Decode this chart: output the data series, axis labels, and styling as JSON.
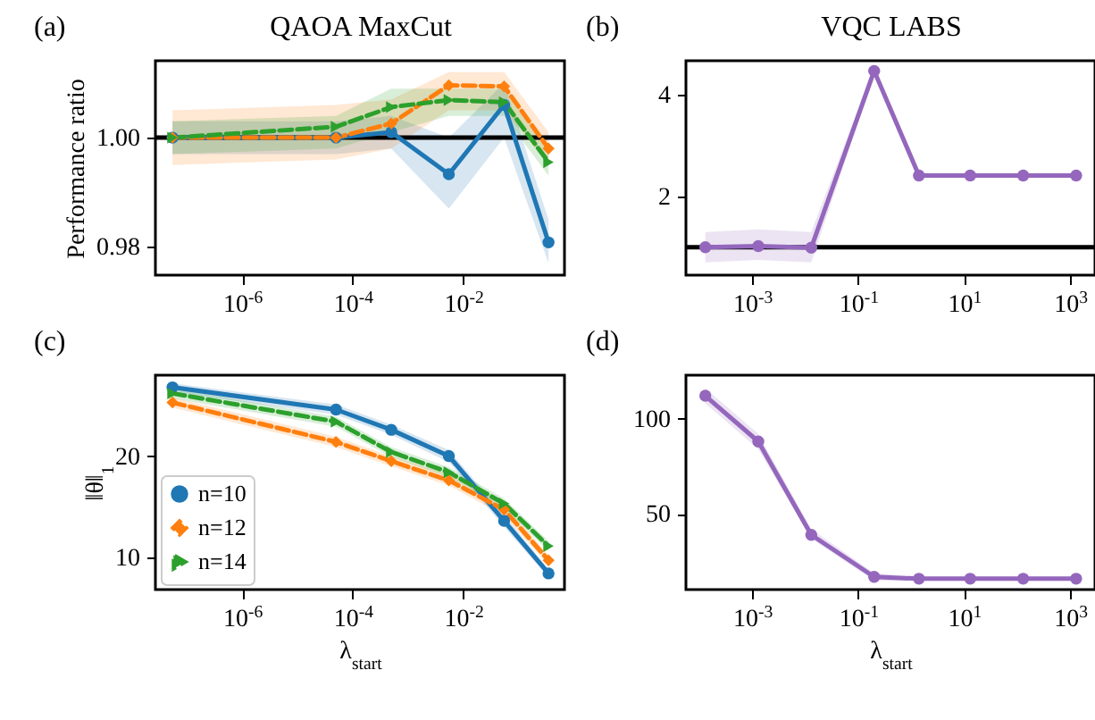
{
  "chart_data": [
    {
      "type": "line",
      "title": "QAOA MaxCut",
      "ylabel": "Performance ratio",
      "annotations": [
        "(a)"
      ],
      "log": "x",
      "x": [
        5.5e-08,
        5e-05,
        0.0005,
        0.0055,
        0.055,
        0.35
      ],
      "xlim": [
        2.7e-08,
        0.68
      ],
      "xticks": [
        {
          "value": 1e-06,
          "label": "10$^{-6}$"
        },
        {
          "value": 0.0001,
          "label": "10$^{-4}$"
        },
        {
          "value": 0.01,
          "label": "10$^{-2}$"
        }
      ],
      "ylim": [
        0.9748,
        1.0141
      ],
      "yticks": [
        0.98,
        {
          "value": 1,
          "label": "1.00"
        }
      ],
      "ref_lines": [
        {
          "axis": "y",
          "value": 1,
          "color": "#000000"
        }
      ],
      "series": [
        {
          "color": "#1f77b4",
          "marker": "circle",
          "line_style": "solid",
          "values": [
            1.0,
            1.0,
            1.001,
            0.9933,
            1.006,
            0.9808
          ],
          "lower": [
            0.997,
            0.997,
            0.998,
            0.987,
            1.0,
            0.977
          ],
          "upper": [
            1.003,
            1.003,
            1.004,
            1.0,
            1.01,
            0.985
          ]
        },
        {
          "color": "#ff7f0e",
          "marker": "diamond",
          "line_style": "dashed",
          "values": [
            1.0,
            1.0,
            1.0026,
            1.0096,
            1.0094,
            0.998
          ],
          "lower": [
            0.995,
            0.996,
            0.998,
            1.005,
            1.005,
            0.995
          ],
          "upper": [
            1.005,
            1.006,
            1.007,
            1.012,
            1.012,
            1.001
          ]
        },
        {
          "color": "#2ca02c",
          "marker": "triangle",
          "line_style": "dashed",
          "values": [
            1.0,
            1.002,
            1.0056,
            1.0069,
            1.0065,
            0.9955
          ],
          "lower": [
            0.997,
            0.998,
            1.001,
            1.004,
            1.004,
            0.993
          ],
          "upper": [
            1.003,
            1.004,
            1.009,
            1.009,
            1.009,
            0.998
          ]
        }
      ]
    },
    {
      "type": "line",
      "title": "VQC LABS",
      "annotations": [
        "(b)"
      ],
      "log": "x",
      "x": [
        0.00013,
        0.0013,
        0.013,
        0.2,
        1.4,
        13,
        130,
        1300
      ],
      "xlim": [
        5.6e-05,
        2950
      ],
      "xticks": [
        {
          "value": 0.001,
          "label": "10$^{-3}$"
        },
        {
          "value": 0.1,
          "label": "10$^{-1}$"
        },
        {
          "value": 10,
          "label": "10$^{1}$"
        },
        {
          "value": 1000,
          "label": "10$^{3}$"
        }
      ],
      "ylim": [
        0.45,
        4.67
      ],
      "yticks": [
        2,
        4
      ],
      "ref_lines": [
        {
          "axis": "y",
          "value": 1,
          "color": "#000000"
        }
      ],
      "series": [
        {
          "color": "#9467bd",
          "marker": "circle",
          "line_style": "solid",
          "values": [
            1.0,
            1.02,
            0.99,
            4.47,
            2.41,
            2.41,
            2.41,
            2.41
          ],
          "lower": [
            0.7,
            0.75,
            0.7,
            4.4,
            2.38,
            2.38,
            2.38,
            2.38
          ],
          "upper": [
            1.3,
            1.35,
            1.3,
            4.55,
            2.44,
            2.44,
            2.44,
            2.44
          ]
        }
      ]
    },
    {
      "type": "line",
      "xlabel": "λ$_{start}$",
      "ylabel": "‖θ‖$_{1}$",
      "annotations": [
        "(c)"
      ],
      "log": "x",
      "legend": "bottom left",
      "x": [
        5.5e-08,
        5e-05,
        0.0005,
        0.0055,
        0.055,
        0.35
      ],
      "xlim": [
        2.7e-08,
        0.68
      ],
      "xticks": [
        {
          "value": 1e-06,
          "label": "10$^{-6}$"
        },
        {
          "value": 0.0001,
          "label": "10$^{-4}$"
        },
        {
          "value": 0.01,
          "label": "10$^{-2}$"
        }
      ],
      "ylim": [
        6.8,
        28
      ],
      "yticks": [
        10,
        20
      ],
      "series": [
        {
          "name": "n=10",
          "color": "#1f77b4",
          "marker": "circle",
          "line_style": "solid",
          "values": [
            26.8,
            24.6,
            22.6,
            20.0,
            13.6,
            8.4
          ],
          "lower": [
            26.3,
            24.1,
            22.1,
            19.4,
            13.0,
            8.0
          ],
          "upper": [
            27.2,
            25.1,
            23.1,
            20.6,
            14.2,
            8.8
          ]
        },
        {
          "name": "n=12",
          "color": "#ff7f0e",
          "marker": "diamond",
          "line_style": "dashed",
          "values": [
            25.3,
            21.4,
            19.5,
            17.6,
            14.7,
            9.7
          ],
          "lower": [
            24.8,
            20.9,
            19.0,
            17.1,
            14.1,
            9.2
          ],
          "upper": [
            25.8,
            21.9,
            20.0,
            18.2,
            15.3,
            10.2
          ]
        },
        {
          "name": "n=14",
          "color": "#2ca02c",
          "marker": "triangle",
          "line_style": "dashed",
          "values": [
            26.2,
            23.4,
            20.4,
            18.4,
            15.3,
            11.1
          ],
          "lower": [
            25.7,
            22.9,
            19.9,
            17.9,
            14.8,
            10.6
          ],
          "upper": [
            26.7,
            23.9,
            20.9,
            18.9,
            15.8,
            11.6
          ]
        }
      ]
    },
    {
      "type": "line",
      "xlabel": "λ$_{start}$",
      "annotations": [
        "(d)"
      ],
      "log": "x",
      "x": [
        0.00013,
        0.0013,
        0.013,
        0.2,
        1.4,
        13,
        130,
        1300
      ],
      "xlim": [
        5.6e-05,
        2950
      ],
      "xticks": [
        {
          "value": 0.001,
          "label": "10$^{-3}$"
        },
        {
          "value": 0.1,
          "label": "10$^{-1}$"
        },
        {
          "value": 10,
          "label": "10$^{1}$"
        },
        {
          "value": 1000,
          "label": "10$^{3}$"
        }
      ],
      "ylim": [
        10.3,
        122.8
      ],
      "yticks": [
        50,
        100
      ],
      "series": [
        {
          "color": "#9467bd",
          "marker": "circle",
          "line_style": "solid",
          "values": [
            112,
            88,
            39,
            17,
            16,
            16,
            16,
            16
          ],
          "lower": [
            108,
            84,
            37,
            15,
            15,
            15,
            15,
            15
          ],
          "upper": [
            116,
            92,
            42,
            19,
            17,
            17,
            17,
            17
          ]
        }
      ]
    }
  ]
}
